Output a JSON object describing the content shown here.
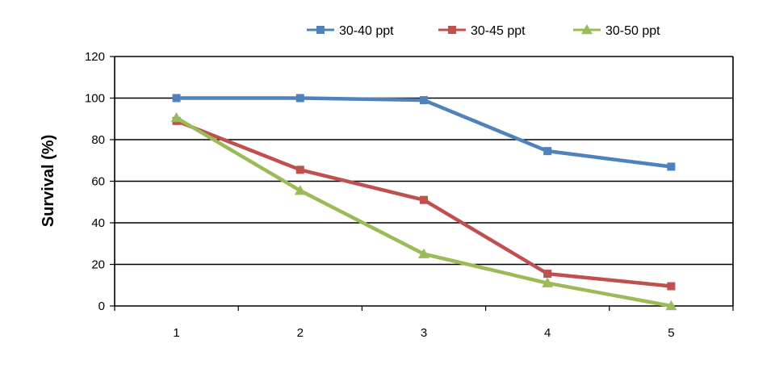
{
  "chart_data": {
    "type": "line",
    "title": "",
    "xlabel": "",
    "ylabel": "Survival (%)",
    "x": [
      "1",
      "2",
      "3",
      "4",
      "5"
    ],
    "ylim": [
      0,
      120
    ],
    "yticks": [
      "0",
      "20",
      "40",
      "60",
      "80",
      "100",
      "120"
    ],
    "grid": true,
    "legend_position": "top",
    "series": [
      {
        "name": "30-40 ppt",
        "color": "#4F81BD",
        "marker": "square",
        "values": [
          100,
          100,
          99,
          74.5,
          67
        ]
      },
      {
        "name": "30-45 ppt",
        "color": "#C0504D",
        "marker": "square",
        "values": [
          89,
          65.5,
          51,
          15.5,
          9.5
        ]
      },
      {
        "name": "30-50 ppt",
        "color": "#9BBB59",
        "marker": "triangle",
        "values": [
          90.5,
          55.5,
          25,
          11,
          0
        ]
      }
    ]
  }
}
